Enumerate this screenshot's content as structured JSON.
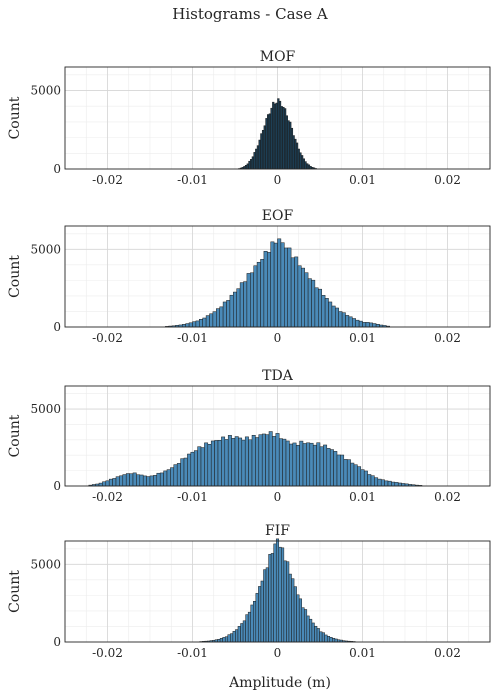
{
  "chart_data": {
    "type": "bar",
    "title": "Histograms - Case A",
    "xlabel": "Amplitude (m)",
    "colors": {
      "bar": "#4a8ab8",
      "mof_bar": "#1d3f55",
      "edge": "#1b1b1b"
    },
    "grid": true,
    "panels": [
      {
        "title": "MOF",
        "ylabel": "Count",
        "xlim": [
          -0.025,
          0.025
        ],
        "ylim": [
          0,
          6500
        ],
        "xticks": [
          "-0.02",
          "-0.01",
          "0",
          "0.01",
          "0.02"
        ],
        "yticks": [
          "0",
          "5000"
        ],
        "bin_width": 0.0002,
        "x": [
          -0.0045,
          -0.004,
          -0.0035,
          -0.003,
          -0.0025,
          -0.002,
          -0.0015,
          -0.001,
          -0.0005,
          0.0,
          0.0005,
          0.001,
          0.0015,
          0.002,
          0.0025,
          0.003,
          0.0035,
          0.004,
          0.0045
        ],
        "y": [
          30,
          120,
          330,
          700,
          1250,
          2000,
          2850,
          3550,
          4100,
          4400,
          4150,
          3600,
          2900,
          2050,
          1300,
          720,
          340,
          130,
          35
        ]
      },
      {
        "title": "EOF",
        "ylabel": "Count",
        "xlim": [
          -0.025,
          0.025
        ],
        "ylim": [
          0,
          6500
        ],
        "xticks": [
          "-0.02",
          "-0.01",
          "0",
          "0.01",
          "0.02"
        ],
        "yticks": [
          "0",
          "5000"
        ],
        "bin_width": 0.0004,
        "x": [
          -0.013,
          -0.012,
          -0.011,
          -0.01,
          -0.009,
          -0.008,
          -0.007,
          -0.006,
          -0.005,
          -0.004,
          -0.003,
          -0.002,
          -0.001,
          0.0,
          0.001,
          0.002,
          0.003,
          0.004,
          0.005,
          0.006,
          0.007,
          0.008,
          0.009,
          0.01,
          0.011,
          0.012,
          0.013
        ],
        "y": [
          40,
          90,
          170,
          300,
          480,
          780,
          1150,
          1650,
          2250,
          2900,
          3600,
          4300,
          5000,
          5700,
          5200,
          4500,
          3750,
          3050,
          2350,
          1700,
          1180,
          820,
          540,
          320,
          270,
          150,
          60
        ]
      },
      {
        "title": "TDA",
        "ylabel": "Count",
        "xlim": [
          -0.025,
          0.025
        ],
        "ylim": [
          0,
          6500
        ],
        "xticks": [
          "-0.02",
          "-0.01",
          "0",
          "0.01",
          "0.02"
        ],
        "yticks": [
          "0",
          "5000"
        ],
        "bin_width": 0.0004,
        "x": [
          -0.022,
          -0.021,
          -0.02,
          -0.019,
          -0.018,
          -0.017,
          -0.016,
          -0.015,
          -0.014,
          -0.013,
          -0.012,
          -0.011,
          -0.01,
          -0.009,
          -0.008,
          -0.007,
          -0.006,
          -0.005,
          -0.004,
          -0.003,
          -0.002,
          -0.001,
          0.0,
          0.001,
          0.002,
          0.003,
          0.004,
          0.005,
          0.006,
          0.007,
          0.008,
          0.009,
          0.01,
          0.011,
          0.012,
          0.013,
          0.014,
          0.015,
          0.016,
          0.017
        ],
        "y": [
          60,
          150,
          350,
          550,
          750,
          850,
          700,
          600,
          800,
          1000,
          1350,
          1800,
          2200,
          2550,
          2800,
          3000,
          3150,
          3200,
          3050,
          3150,
          3300,
          3450,
          3300,
          2950,
          2700,
          2850,
          2750,
          2700,
          2500,
          2150,
          1800,
          1450,
          1100,
          700,
          450,
          320,
          230,
          150,
          80,
          30
        ]
      },
      {
        "title": "FIF",
        "ylabel": "Count",
        "xlim": [
          -0.025,
          0.025
        ],
        "ylim": [
          0,
          6500
        ],
        "xticks": [
          "-0.02",
          "-0.01",
          "0",
          "0.01",
          "0.02"
        ],
        "yticks": [
          "0",
          "5000"
        ],
        "bin_width": 0.0003,
        "x": [
          -0.009,
          -0.008,
          -0.007,
          -0.006,
          -0.005,
          -0.004,
          -0.003,
          -0.0025,
          -0.002,
          -0.0015,
          -0.001,
          -0.0005,
          0.0,
          0.0005,
          0.001,
          0.0015,
          0.002,
          0.0025,
          0.003,
          0.004,
          0.005,
          0.006,
          0.007,
          0.008,
          0.009
        ],
        "y": [
          30,
          70,
          160,
          350,
          700,
          1300,
          2300,
          2950,
          3700,
          4500,
          5300,
          6000,
          6600,
          6000,
          5300,
          4500,
          3700,
          2950,
          2300,
          1350,
          720,
          360,
          170,
          70,
          30
        ]
      }
    ]
  }
}
